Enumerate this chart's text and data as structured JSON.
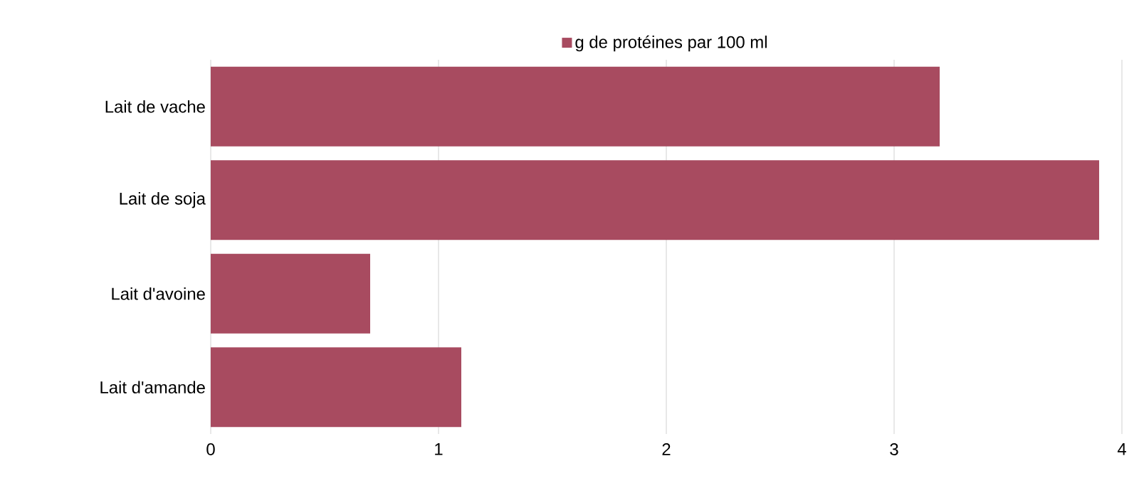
{
  "chart_data": {
    "type": "bar",
    "orientation": "horizontal",
    "categories": [
      "Lait de vache",
      "Lait de soja",
      "Lait d'avoine",
      "Lait d'amande"
    ],
    "series": [
      {
        "name": "g de protéines par 100 ml",
        "color": "#a84b60",
        "values": [
          3.2,
          3.9,
          0.7,
          1.1
        ]
      }
    ],
    "xlim": [
      0,
      4
    ],
    "xticks": [
      0,
      1,
      2,
      3,
      4
    ],
    "grid": "x",
    "legend": "top"
  }
}
